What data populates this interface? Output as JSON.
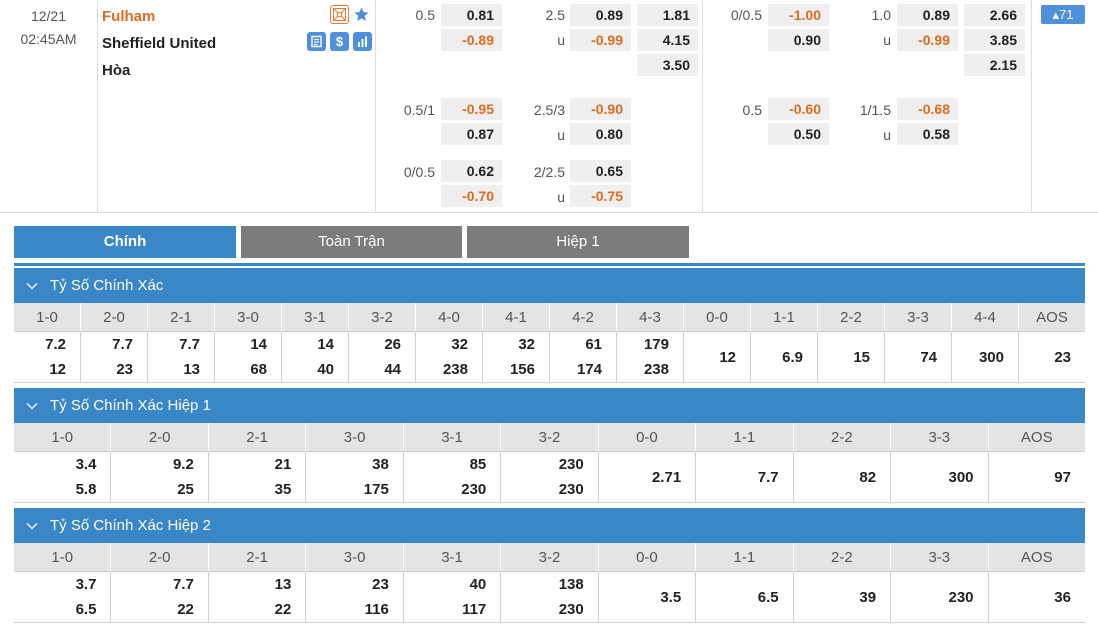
{
  "match": {
    "date": "12/21",
    "time": "02:45AM",
    "home": "Fulham",
    "away": "Sheffield United",
    "draw": "Hòa",
    "more_count": "▴71"
  },
  "odds": {
    "ft_hdp": [
      {
        "line": "0.5",
        "home": "0.81",
        "away": "-0.89"
      },
      {
        "line": "0.5/1",
        "home": "-0.95",
        "away": "0.87"
      },
      {
        "line": "0/0.5",
        "home": "0.62",
        "away": "-0.70"
      }
    ],
    "ft_ou": [
      {
        "line": "2.5",
        "u": "u",
        "over": "0.89",
        "under": "-0.99"
      },
      {
        "line": "2.5/3",
        "u": "u",
        "over": "-0.90",
        "under": "0.80"
      },
      {
        "line": "2/2.5",
        "u": "u",
        "over": "0.65",
        "under": "-0.75"
      }
    ],
    "ft_1x2": [
      "1.81",
      "4.15",
      "3.50"
    ],
    "h1_hdp": [
      {
        "line": "0/0.5",
        "home": "-1.00",
        "away": "0.90"
      },
      {
        "line": "0.5",
        "home": "-0.60",
        "away": "0.50"
      }
    ],
    "h1_ou": [
      {
        "line": "1.0",
        "u": "u",
        "over": "0.89",
        "under": "-0.99"
      },
      {
        "line": "1/1.5",
        "u": "u",
        "over": "-0.68",
        "under": "0.58"
      }
    ],
    "h1_1x2": [
      "2.66",
      "3.85",
      "2.15"
    ]
  },
  "tabs": [
    {
      "label": "Chính",
      "active": true
    },
    {
      "label": "Toàn Trận",
      "active": false
    },
    {
      "label": "Hiệp 1",
      "active": false
    }
  ],
  "sections": [
    {
      "title": "Tỷ Số Chính Xác",
      "headers": [
        "1-0",
        "2-0",
        "2-1",
        "3-0",
        "3-1",
        "3-2",
        "4-0",
        "4-1",
        "4-2",
        "4-3",
        "0-0",
        "1-1",
        "2-2",
        "3-3",
        "4-4",
        "AOS"
      ],
      "values": [
        [
          "7.2",
          "12"
        ],
        [
          "7.7",
          "23"
        ],
        [
          "7.7",
          "13"
        ],
        [
          "14",
          "68"
        ],
        [
          "14",
          "40"
        ],
        [
          "26",
          "44"
        ],
        [
          "32",
          "238"
        ],
        [
          "32",
          "156"
        ],
        [
          "61",
          "174"
        ],
        [
          "179",
          "238"
        ],
        [
          "12"
        ],
        [
          "6.9"
        ],
        [
          "15"
        ],
        [
          "74"
        ],
        [
          "300"
        ],
        [
          "23"
        ]
      ]
    },
    {
      "title": "Tỷ Số Chính Xác Hiệp 1",
      "headers": [
        "1-0",
        "2-0",
        "2-1",
        "3-0",
        "3-1",
        "3-2",
        "0-0",
        "1-1",
        "2-2",
        "3-3",
        "AOS"
      ],
      "values": [
        [
          "3.4",
          "5.8"
        ],
        [
          "9.2",
          "25"
        ],
        [
          "21",
          "35"
        ],
        [
          "38",
          "175"
        ],
        [
          "85",
          "230"
        ],
        [
          "230",
          "230"
        ],
        [
          "2.71"
        ],
        [
          "7.7"
        ],
        [
          "82"
        ],
        [
          "300"
        ],
        [
          "97"
        ]
      ]
    },
    {
      "title": "Tỷ Số Chính Xác Hiệp 2",
      "headers": [
        "1-0",
        "2-0",
        "2-1",
        "3-0",
        "3-1",
        "3-2",
        "0-0",
        "1-1",
        "2-2",
        "3-3",
        "AOS"
      ],
      "values": [
        [
          "3.7",
          "6.5"
        ],
        [
          "7.7",
          "22"
        ],
        [
          "13",
          "22"
        ],
        [
          "23",
          "116"
        ],
        [
          "40",
          "117"
        ],
        [
          "138",
          "230"
        ],
        [
          "3.5"
        ],
        [
          "6.5"
        ],
        [
          "39"
        ],
        [
          "230"
        ],
        [
          "36"
        ]
      ]
    }
  ],
  "colors": {
    "accent": "#3a87c8",
    "home_team": "#e06b1f",
    "negative_odds": "#e06b1f",
    "tab_inactive": "#7c7c7c",
    "icon_bg": "#4f8fdb",
    "icon_orange": "#e8772e"
  },
  "icons": [
    "field-icon",
    "star-icon",
    "stats-book-icon",
    "dollar-icon",
    "bar-chart-icon",
    "chevron-down-icon"
  ]
}
